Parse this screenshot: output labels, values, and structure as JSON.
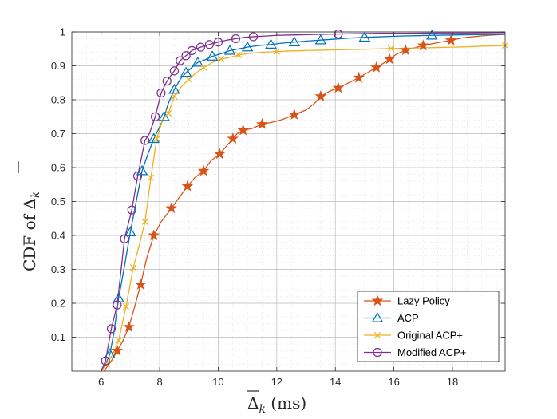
{
  "chart_data": {
    "type": "line",
    "title": "",
    "xlabel": {
      "symbol": "Δ",
      "subscript": "k",
      "suffix": " (ms)"
    },
    "ylabel": {
      "prefix": "CDF of ",
      "symbol": "Δ",
      "subscript": "k"
    },
    "xlim": [
      5,
      19.8
    ],
    "ylim": [
      0,
      1
    ],
    "xticks": [
      6,
      8,
      10,
      12,
      14,
      16,
      18
    ],
    "yticks": [
      0.1,
      0.2,
      0.3,
      0.4,
      0.5,
      0.6,
      0.7,
      0.8,
      0.9,
      1
    ],
    "xtick_labels": [
      "6",
      "8",
      "10",
      "12",
      "14",
      "16",
      "18"
    ],
    "ytick_labels": [
      "0.1",
      "0.2",
      "0.3",
      "0.4",
      "0.5",
      "0.6",
      "0.7",
      "0.8",
      "0.9",
      "1"
    ],
    "grid": true,
    "minor_grid": true,
    "legend_position": "bottom-right",
    "series": [
      {
        "name": "Lazy Policy",
        "color": "#D95319",
        "marker": "star",
        "x": [
          6.1,
          6.35,
          6.55,
          6.75,
          6.95,
          7.15,
          7.35,
          7.55,
          7.8,
          8.05,
          8.4,
          8.65,
          8.95,
          9.2,
          9.5,
          9.75,
          10.05,
          10.3,
          10.5,
          10.65,
          10.85,
          11.15,
          11.5,
          11.9,
          12.2,
          12.6,
          13.0,
          13.3,
          13.5,
          13.8,
          14.1,
          14.5,
          14.8,
          15.1,
          15.4,
          15.65,
          15.85,
          16.1,
          16.4,
          16.7,
          17.0,
          17.3,
          17.6,
          17.95,
          18.3,
          18.7,
          19.2,
          19.8
        ],
        "y": [
          0.0,
          0.03,
          0.06,
          0.09,
          0.13,
          0.19,
          0.255,
          0.33,
          0.4,
          0.44,
          0.48,
          0.51,
          0.545,
          0.57,
          0.59,
          0.62,
          0.64,
          0.665,
          0.685,
          0.7,
          0.71,
          0.715,
          0.728,
          0.735,
          0.742,
          0.756,
          0.77,
          0.79,
          0.81,
          0.825,
          0.835,
          0.852,
          0.865,
          0.88,
          0.895,
          0.908,
          0.92,
          0.935,
          0.946,
          0.953,
          0.96,
          0.965,
          0.97,
          0.975,
          0.982,
          0.986,
          0.99,
          0.993
        ],
        "marker_indices": [
          2,
          4,
          6,
          8,
          10,
          12,
          14,
          16,
          18,
          20,
          22,
          25,
          28,
          30,
          32,
          34,
          36,
          38,
          40,
          43
        ]
      },
      {
        "name": "ACP",
        "color": "#0072BD",
        "marker": "triangle",
        "x": [
          6.0,
          6.15,
          6.3,
          6.45,
          6.6,
          6.8,
          7.0,
          7.2,
          7.4,
          7.6,
          7.8,
          8.0,
          8.15,
          8.3,
          8.5,
          8.7,
          8.9,
          9.1,
          9.3,
          9.55,
          9.8,
          10.1,
          10.4,
          10.7,
          11.0,
          11.4,
          11.8,
          12.2,
          12.6,
          13.0,
          13.5,
          14.0,
          14.5,
          15.0,
          15.6,
          16.2,
          16.8,
          17.3,
          18.0,
          18.8,
          19.8
        ],
        "y": [
          0.0,
          0.02,
          0.05,
          0.12,
          0.215,
          0.31,
          0.41,
          0.5,
          0.59,
          0.64,
          0.685,
          0.72,
          0.75,
          0.79,
          0.83,
          0.86,
          0.88,
          0.895,
          0.91,
          0.918,
          0.928,
          0.936,
          0.945,
          0.95,
          0.955,
          0.96,
          0.963,
          0.967,
          0.97,
          0.973,
          0.976,
          0.979,
          0.982,
          0.984,
          0.986,
          0.988,
          0.989,
          0.99,
          0.991,
          0.992,
          0.993
        ],
        "marker_indices": [
          2,
          4,
          6,
          8,
          10,
          12,
          14,
          16,
          18,
          20,
          22,
          24,
          26,
          28,
          30,
          33,
          37
        ]
      },
      {
        "name": "Original ACP+",
        "color": "#EDB120",
        "marker": "x",
        "x": [
          6.0,
          6.2,
          6.4,
          6.6,
          6.85,
          7.1,
          7.3,
          7.5,
          7.7,
          7.9,
          8.1,
          8.3,
          8.5,
          8.75,
          9.0,
          9.25,
          9.5,
          9.8,
          10.1,
          10.4,
          10.7,
          11.0,
          11.5,
          12.0,
          12.5,
          13.0,
          13.5,
          14.0,
          14.5,
          15.0,
          15.5,
          15.9,
          16.5,
          17.0,
          17.5,
          18.0,
          18.5,
          19.0,
          19.5,
          19.8
        ],
        "y": [
          0.0,
          0.02,
          0.05,
          0.09,
          0.19,
          0.305,
          0.37,
          0.44,
          0.57,
          0.685,
          0.74,
          0.76,
          0.81,
          0.84,
          0.86,
          0.88,
          0.895,
          0.91,
          0.92,
          0.925,
          0.932,
          0.936,
          0.94,
          0.942,
          0.944,
          0.945,
          0.946,
          0.947,
          0.948,
          0.949,
          0.95,
          0.951,
          0.952,
          0.953,
          0.954,
          0.955,
          0.956,
          0.958,
          0.959,
          0.96
        ],
        "marker_indices": [
          1,
          3,
          4,
          5,
          7,
          8,
          9,
          11,
          12,
          14,
          16,
          18,
          20,
          23,
          31,
          39
        ]
      },
      {
        "name": "Modified ACP+",
        "color": "#7E2F8E",
        "marker": "circle",
        "x": [
          6.0,
          6.15,
          6.35,
          6.55,
          6.8,
          7.05,
          7.25,
          7.5,
          7.65,
          7.85,
          8.05,
          8.25,
          8.5,
          8.7,
          8.9,
          9.1,
          9.4,
          9.7,
          10.0,
          10.3,
          10.6,
          10.9,
          11.2,
          11.6,
          12.0,
          12.5,
          13.0,
          13.5,
          14.1,
          14.7,
          15.5,
          16.5,
          17.5,
          18.5,
          19.8
        ],
        "y": [
          0.0,
          0.03,
          0.125,
          0.195,
          0.39,
          0.475,
          0.575,
          0.68,
          0.7,
          0.75,
          0.82,
          0.855,
          0.885,
          0.915,
          0.93,
          0.945,
          0.955,
          0.963,
          0.97,
          0.976,
          0.98,
          0.984,
          0.986,
          0.988,
          0.99,
          0.991,
          0.992,
          0.993,
          0.994,
          0.995,
          0.996,
          0.996,
          0.997,
          0.997,
          0.998
        ],
        "marker_indices": [
          1,
          2,
          3,
          4,
          5,
          6,
          7,
          9,
          10,
          11,
          12,
          13,
          14,
          15,
          16,
          17,
          18,
          20,
          22,
          28
        ]
      }
    ]
  }
}
